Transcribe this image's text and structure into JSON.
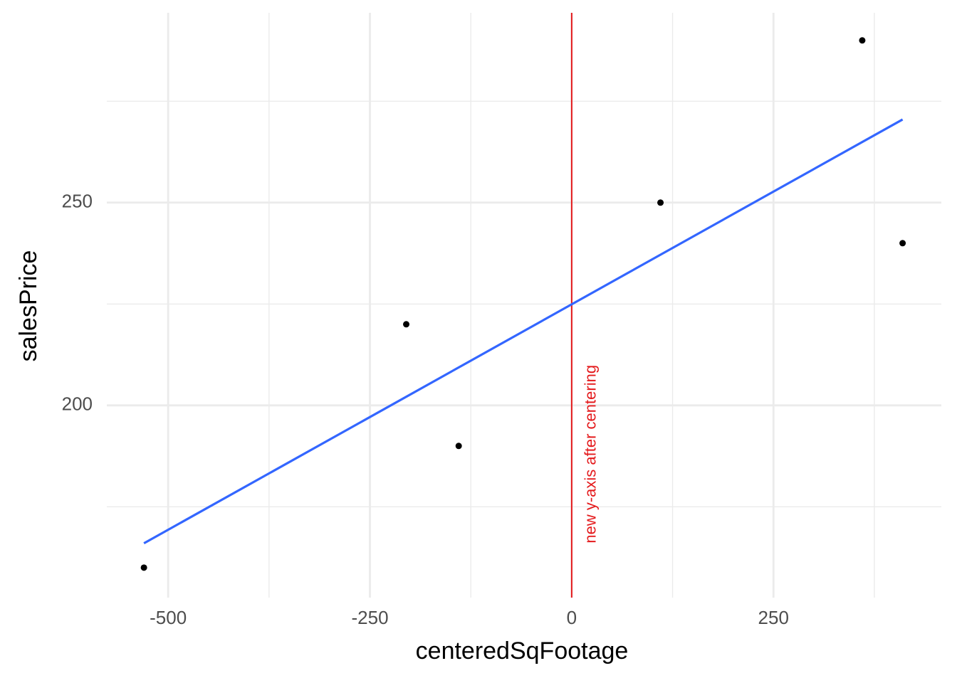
{
  "chart_data": {
    "type": "scatter",
    "x_label": "centeredSqFootage",
    "y_label": "salesPrice",
    "series": [
      {
        "color": "#000000",
        "x": [
          -530,
          -205,
          -140,
          110,
          360,
          410
        ],
        "values": [
          160,
          220,
          190,
          250,
          290,
          240
        ]
      }
    ],
    "fit": {
      "color": "#3366ff",
      "x": [
        -530,
        410
      ],
      "values": [
        166,
        270.5
      ]
    },
    "vline": {
      "x": 0,
      "color": "#e41a1c",
      "label": "new y-axis after centering",
      "label_y": 166
    },
    "xlim": [
      -576,
      458
    ],
    "ylim": [
      152.6,
      296.8
    ],
    "xticks": [
      -500,
      -250,
      0,
      250
    ],
    "yticks": [
      200,
      250
    ],
    "x_minor_ticks": [
      -375,
      -125,
      125,
      375
    ],
    "y_minor_ticks": [
      175,
      225,
      275
    ],
    "grid": true
  }
}
